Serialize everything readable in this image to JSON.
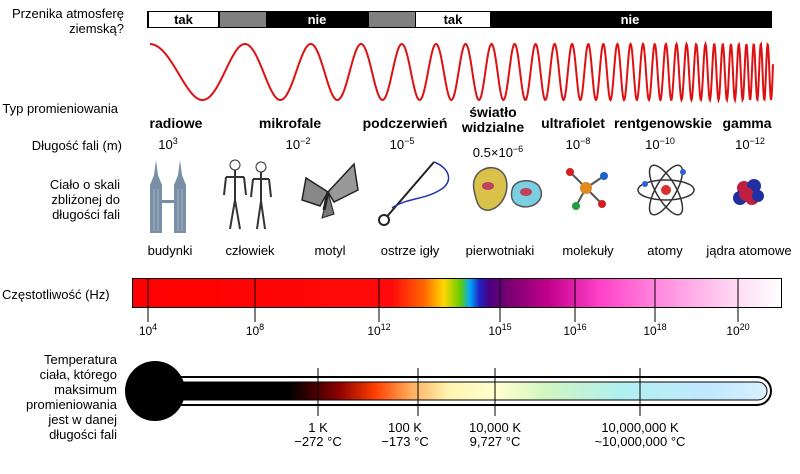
{
  "transparency": {
    "label": "Przenika atmosferę ziemską?",
    "segments": [
      {
        "text": "tak",
        "state": "yes"
      },
      {
        "text": "",
        "state": "partial"
      },
      {
        "text": "nie",
        "state": "no"
      },
      {
        "text": "",
        "state": "partial"
      },
      {
        "text": "tak",
        "state": "yes"
      },
      {
        "text": "nie",
        "state": "no"
      }
    ]
  },
  "left_labels": {
    "type": "Typ promieniowania",
    "wavelength": "Długość fali (m)",
    "size": "Ciało o skali zbliżonej do długości fali",
    "frequency": "Częstotliwość (Hz)",
    "temperature": "Temperatura ciała, którego maksimum promieniowania jest w danej długości fali"
  },
  "bands": [
    {
      "name": "radiowe",
      "wl_base": "10",
      "wl_exp": "3",
      "object": "budynki"
    },
    {
      "name": "mikrofale",
      "wl_base": "10",
      "wl_exp": "−2",
      "object": "człowiek"
    },
    {
      "name": "podczerwień",
      "wl_base": "10",
      "wl_exp": "−5",
      "object": "motyl"
    },
    {
      "name": "światło widzialne",
      "wl_base": "0.5×10",
      "wl_exp": "−6",
      "object": "ostrze igły"
    },
    {
      "name": "ultrafiolet",
      "wl_base": "10",
      "wl_exp": "−8",
      "object": "pierwotniaki"
    },
    {
      "name": "rentgenowskie",
      "wl_base": "10",
      "wl_exp": "−10",
      "object": "molekuły"
    },
    {
      "name": "gamma",
      "wl_base": "10",
      "wl_exp": "−12",
      "object": "atomy"
    },
    {
      "name": "",
      "wl_base": "",
      "wl_exp": "",
      "object": "jądra atomowe"
    }
  ],
  "frequency_ticks": [
    {
      "base": "10",
      "exp": "4"
    },
    {
      "base": "10",
      "exp": "8"
    },
    {
      "base": "10",
      "exp": "12"
    },
    {
      "base": "10",
      "exp": "15"
    },
    {
      "base": "10",
      "exp": "16"
    },
    {
      "base": "10",
      "exp": "18"
    },
    {
      "base": "10",
      "exp": "20"
    }
  ],
  "temperature_ticks": [
    {
      "k": "1 K",
      "c": "−272 °C"
    },
    {
      "k": "100 K",
      "c": "−173 °C"
    },
    {
      "k": "10,000 K",
      "c": "9,727 °C"
    },
    {
      "k": "10,000,000 K",
      "c": "~10,000,000 °C"
    }
  ],
  "colors": {
    "wave": "#dd1111",
    "transparent_yes": "#ffffff",
    "transparent_partial": "#808080",
    "transparent_no": "#000000"
  }
}
